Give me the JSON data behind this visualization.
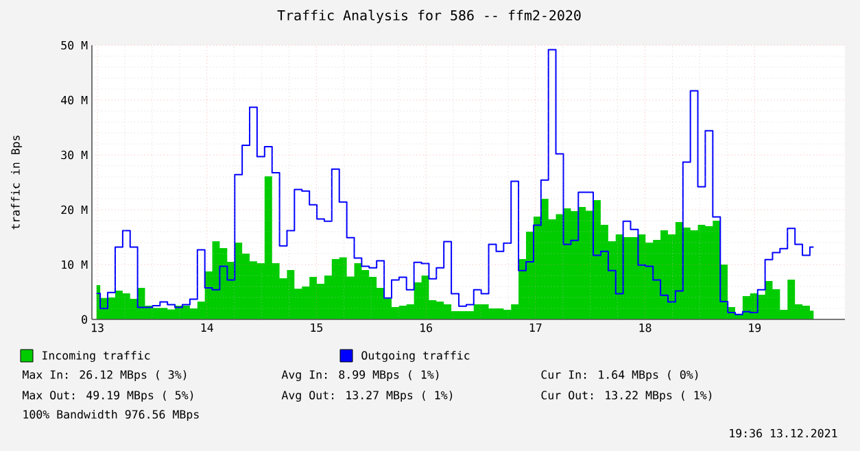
{
  "chart_data": {
    "type": "area",
    "title": "Traffic Analysis for 586 -- ffm2-2020",
    "ylabel": "traffic in Bps",
    "x": [
      12.992,
      13.06,
      13.128,
      13.197,
      13.265,
      13.333,
      13.401,
      13.469,
      13.538,
      13.606,
      13.674,
      13.742,
      13.81,
      13.879,
      13.947,
      14.015,
      14.083,
      14.151,
      14.22,
      14.288,
      14.356,
      14.424,
      14.492,
      14.561,
      14.629,
      14.697,
      14.765,
      14.833,
      14.902,
      14.97,
      15.038,
      15.106,
      15.174,
      15.243,
      15.311,
      15.379,
      15.447,
      15.515,
      15.584,
      15.652,
      15.72,
      15.788,
      15.856,
      15.925,
      15.993,
      16.061,
      16.129,
      16.197,
      16.266,
      16.334,
      16.402,
      16.47,
      16.538,
      16.607,
      16.675,
      16.743,
      16.811,
      16.879,
      16.948,
      17.016,
      17.084,
      17.152,
      17.22,
      17.289,
      17.357,
      17.425,
      17.493,
      17.561,
      17.63,
      17.698,
      17.766,
      17.834,
      17.902,
      17.971,
      18.039,
      18.107,
      18.175,
      18.243,
      18.312,
      18.38,
      18.448,
      18.516,
      18.584,
      18.653,
      18.721,
      18.789,
      18.857,
      18.925,
      18.994,
      19.062,
      19.13,
      19.198,
      19.266,
      19.335,
      19.403,
      19.471,
      19.539
    ],
    "series": [
      {
        "name": "Incoming traffic",
        "color": "#00cc00",
        "values": [
          6.25,
          3.9,
          4.0,
          5.25,
          4.75,
          3.75,
          5.75,
          2.5,
          2.1,
          2.1,
          1.8,
          2.5,
          2.5,
          2.0,
          3.25,
          8.75,
          14.25,
          13,
          10.5,
          14,
          12,
          10.6,
          10.25,
          26.1,
          10.25,
          7.5,
          9,
          5.6,
          6,
          7.75,
          6.5,
          8,
          11,
          11.3,
          7.8,
          10.25,
          9,
          7.75,
          5.75,
          3.8,
          2.25,
          2.5,
          2.75,
          6.75,
          8,
          3.5,
          3.25,
          2.75,
          1.5,
          1.5,
          1.5,
          2.75,
          2.75,
          2,
          2,
          1.75,
          2.75,
          11,
          16,
          18.75,
          22,
          18.25,
          19.2,
          20.25,
          19.75,
          20.5,
          19.8,
          21.75,
          17.25,
          14.25,
          15.5,
          15,
          15,
          15.5,
          14,
          14.5,
          16.25,
          15.5,
          17.75,
          16.75,
          16.25,
          17.25,
          17,
          18,
          10,
          2.25,
          1,
          4.25,
          4.75,
          4.5,
          7,
          5.5,
          1.75,
          7.25,
          2.75,
          2.5,
          1.6
        ]
      },
      {
        "name": "Outgoing traffic",
        "type": "step",
        "color": "#0000ff",
        "values": [
          4.75,
          2.0,
          4.9,
          13.2,
          16.2,
          13.2,
          2.2,
          2.2,
          2.5,
          3.2,
          2.7,
          2.2,
          2.7,
          3.7,
          12.7,
          5.75,
          5.4,
          9.7,
          7.2,
          26.4,
          31.75,
          38.7,
          29.7,
          31.5,
          26.75,
          13.4,
          16.2,
          23.7,
          23.4,
          20.9,
          18.3,
          17.9,
          27.4,
          21.4,
          14.9,
          11.2,
          9.7,
          9.4,
          10.7,
          3.9,
          7.2,
          7.7,
          5.4,
          10.4,
          10.2,
          7.4,
          9.4,
          14.2,
          4.7,
          2.4,
          2.7,
          5.4,
          4.7,
          13.7,
          12.4,
          13.9,
          25.2,
          8.9,
          10.5,
          17.2,
          25.4,
          49.2,
          30.2,
          13.7,
          14.4,
          23.2,
          23.2,
          11.7,
          12.4,
          8.9,
          4.7,
          17.9,
          16.4,
          9.9,
          9.7,
          7.2,
          4.4,
          3.2,
          5.2,
          28.7,
          41.7,
          24.2,
          34.4,
          18.7,
          3.25,
          1.25,
          0.9,
          1.4,
          1.25,
          5.4,
          10.9,
          12.2,
          12.9,
          16.6,
          13.7,
          11.7,
          13.2
        ]
      }
    ],
    "xlim": [
      12.95,
      19.825
    ],
    "xticks": [
      13,
      14,
      15,
      16,
      17,
      18,
      19
    ],
    "ylim": [
      0,
      50
    ],
    "yticks": [
      0,
      {
        "value": 10,
        "label": "10 M"
      },
      {
        "value": 20,
        "label": "20 M"
      },
      {
        "value": 30,
        "label": "30 M"
      },
      {
        "value": 40,
        "label": "40 M"
      },
      {
        "value": 50,
        "label": "50 M"
      }
    ],
    "grid": true,
    "legend": "bottom",
    "annotations": [
      "Max In: 26.12 MBps ( 3%)",
      "Avg In: 8.99 MBps ( 1%)",
      "Cur In: 1.64 MBps ( 0%)",
      "Max Out: 49.19 MBps ( 5%)",
      "Avg Out: 13.27 MBps ( 1%)",
      "Cur Out: 13.22 MBps ( 1%)",
      "100% Bandwidth 976.56 MBps",
      "19:36 13.12.2021"
    ]
  }
}
